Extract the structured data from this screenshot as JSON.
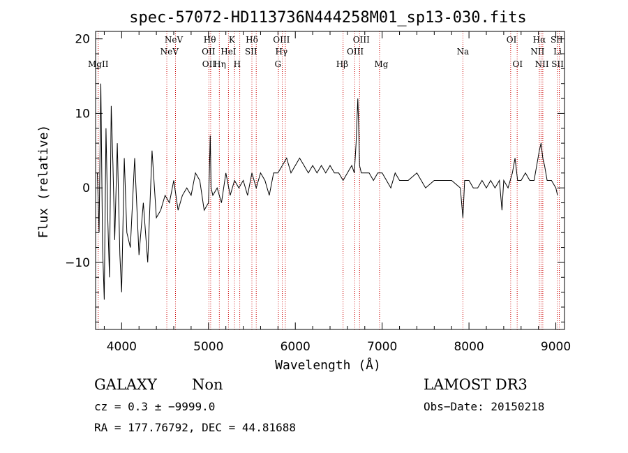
{
  "chart_data": {
    "type": "line",
    "title": "spec-57072-HD113736N444258M01_sp13-030.fits",
    "xlabel": "Wavelength (Å)",
    "ylabel": "Flux (relative)",
    "xlim": [
      3700,
      9100
    ],
    "ylim": [
      -19,
      21
    ],
    "xticks": [
      "4000",
      "5000",
      "6000",
      "7000",
      "8000",
      "9000"
    ],
    "xtick_values": [
      4000,
      5000,
      6000,
      7000,
      8000,
      9000
    ],
    "yticks": [
      "20",
      "10",
      "0",
      "−10"
    ],
    "ytick_values": [
      20,
      10,
      0,
      -10
    ],
    "series": [
      {
        "x": [
          3720,
          3740,
          3760,
          3780,
          3800,
          3820,
          3840,
          3860,
          3880,
          3900,
          3920,
          3950,
          3980,
          4000,
          4030,
          4060,
          4100,
          4150,
          4200,
          4250,
          4300,
          4350,
          4400,
          4450,
          4500,
          4550,
          4600,
          4650,
          4700,
          4750,
          4800,
          4850,
          4900,
          4950,
          5000,
          5010,
          5020,
          5030,
          5050,
          5100,
          5150,
          5200,
          5250,
          5300,
          5350,
          5400,
          5450,
          5500,
          5550,
          5600,
          5650,
          5700,
          5750,
          5800,
          5850,
          5900,
          5950,
          6000,
          6050,
          6100,
          6150,
          6200,
          6250,
          6300,
          6350,
          6400,
          6450,
          6500,
          6550,
          6600,
          6650,
          6680,
          6700,
          6720,
          6730,
          6740,
          6760,
          6800,
          6850,
          6900,
          6950,
          7000,
          7050,
          7100,
          7150,
          7200,
          7300,
          7400,
          7500,
          7600,
          7700,
          7800,
          7900,
          7930,
          7950,
          8000,
          8050,
          8100,
          8150,
          8200,
          8250,
          8300,
          8350,
          8380,
          8400,
          8450,
          8500,
          8530,
          8560,
          8600,
          8650,
          8700,
          8750,
          8780,
          8810,
          8830,
          8850,
          8870,
          8900,
          8950,
          9000,
          9020
        ],
        "y": [
          2,
          -6,
          14,
          -8,
          -15,
          8,
          -4,
          -12,
          11,
          3,
          -7,
          6,
          -9,
          -14,
          4,
          -6,
          -8,
          4,
          -9,
          -2,
          -10,
          5,
          -4,
          -3,
          -1,
          -2,
          1,
          -3,
          -1,
          0,
          -1,
          2,
          1,
          -3,
          -2,
          2,
          7,
          0,
          -1,
          0,
          -2,
          2,
          -1,
          1,
          0,
          1,
          -1,
          2,
          0,
          2,
          1,
          -1,
          2,
          2,
          3,
          4,
          2,
          3,
          4,
          3,
          2,
          3,
          2,
          3,
          2,
          3,
          2,
          2,
          1,
          2,
          3,
          2,
          6,
          12,
          8,
          3,
          2,
          2,
          2,
          1,
          2,
          2,
          1,
          0,
          2,
          1,
          1,
          2,
          0,
          1,
          1,
          1,
          0,
          -4,
          1,
          1,
          0,
          0,
          1,
          0,
          1,
          0,
          1,
          -3,
          1,
          0,
          2,
          4,
          1,
          1,
          2,
          1,
          1,
          3,
          5,
          6,
          4,
          3,
          1,
          1,
          0,
          -1
        ]
      }
    ],
    "spectral_lines": [
      {
        "label": "MgII",
        "x": 3730,
        "row": 3
      },
      {
        "label": "NeV",
        "x": 4550,
        "row": 2
      },
      {
        "label": "NeV",
        "x": 4600,
        "row": 1
      },
      {
        "label": "Hθ",
        "x": 5015,
        "row": 1
      },
      {
        "label": "OII",
        "x": 5000,
        "row": 2
      },
      {
        "label": "OII",
        "x": 5005,
        "row": 3
      },
      {
        "label": "Hη",
        "x": 5130,
        "row": 3
      },
      {
        "label": "HeI",
        "x": 5230,
        "row": 2
      },
      {
        "label": "K",
        "x": 5270,
        "row": 1
      },
      {
        "label": "H",
        "x": 5330,
        "row": 3
      },
      {
        "label": "Hδ",
        "x": 5500,
        "row": 1
      },
      {
        "label": "SII",
        "x": 5490,
        "row": 2
      },
      {
        "label": "OIII",
        "x": 5840,
        "row": 1
      },
      {
        "label": "Hγ",
        "x": 5840,
        "row": 2
      },
      {
        "label": "G",
        "x": 5800,
        "row": 3
      },
      {
        "label": "Hβ",
        "x": 6540,
        "row": 3
      },
      {
        "label": "OIII",
        "x": 6760,
        "row": 1
      },
      {
        "label": "OIII",
        "x": 6690,
        "row": 2
      },
      {
        "label": "Mg",
        "x": 6990,
        "row": 3
      },
      {
        "label": "Na",
        "x": 7930,
        "row": 2
      },
      {
        "label": "OI",
        "x": 8490,
        "row": 1
      },
      {
        "label": "OI",
        "x": 8560,
        "row": 3
      },
      {
        "label": "Hα",
        "x": 8810,
        "row": 1
      },
      {
        "label": "NII",
        "x": 8790,
        "row": 2
      },
      {
        "label": "NII",
        "x": 8840,
        "row": 3
      },
      {
        "label": "SII",
        "x": 9010,
        "row": 1
      },
      {
        "label": "Li",
        "x": 9020,
        "row": 2
      },
      {
        "label": "SII",
        "x": 9020,
        "row": 3
      }
    ],
    "spectral_line_positions": [
      3730,
      4520,
      4620,
      5005,
      5025,
      5125,
      5230,
      5300,
      5360,
      5500,
      5550,
      5805,
      5850,
      5885,
      6550,
      6685,
      6740,
      6970,
      7930,
      8480,
      8555,
      8810,
      8830,
      8850,
      9020,
      9040
    ],
    "line_color": "#000000",
    "marker_color": "#cc0000"
  },
  "info": {
    "class": "GALAXY",
    "subclass": "Non",
    "survey": "LAMOST DR3",
    "cz": "cz = 0.3 ± −9999.0",
    "obs_date": "Obs−Date: 20150218",
    "coords": "RA = 177.76792, DEC =  44.81688"
  }
}
